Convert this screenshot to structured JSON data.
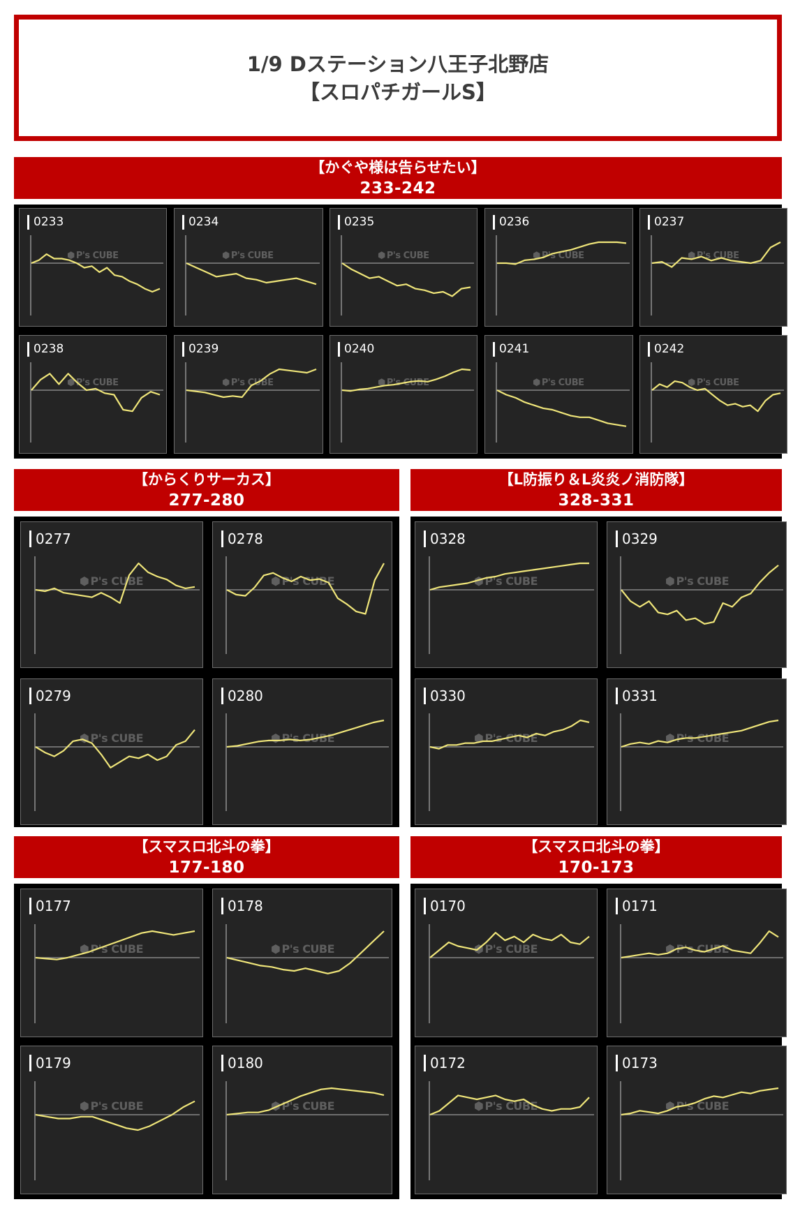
{
  "header": {
    "title_line1": "1/9 Dステーション八王子北野店",
    "title_line2": "【スロパチガールS】"
  },
  "watermark": {
    "text": "P's CUBE"
  },
  "colors": {
    "banner_red": "#c00000",
    "chart_bg": "#242424",
    "line_yellow": "#f0e67a",
    "axis_grey": "#9a9a9a"
  },
  "groups": [
    {
      "title": "【かぐや様は告らせたい】",
      "range": "233-242",
      "machines": [
        {
          "id": "0233",
          "values": [
            0,
            2,
            6,
            3,
            3,
            2,
            0,
            -3,
            -2,
            -6,
            -3,
            -8,
            -9,
            -12,
            -14,
            -17,
            -19,
            -17
          ]
        },
        {
          "id": "0234",
          "values": [
            0,
            -3,
            -6,
            -9,
            -8,
            -7,
            -10,
            -11,
            -13,
            -12,
            -11,
            -10,
            -12,
            -14
          ]
        },
        {
          "id": "0235",
          "values": [
            0,
            -4,
            -7,
            -10,
            -9,
            -12,
            -15,
            -14,
            -17,
            -18,
            -20,
            -19,
            -22,
            -17,
            -16
          ]
        },
        {
          "id": "0236",
          "values": [
            0,
            0,
            -1,
            3,
            4,
            6,
            10,
            12,
            14,
            17,
            20,
            22,
            22,
            22,
            21
          ]
        },
        {
          "id": "0237",
          "values": [
            0,
            1,
            -3,
            4,
            3,
            5,
            2,
            4,
            2,
            1,
            0,
            2,
            12,
            16
          ]
        },
        {
          "id": "0238",
          "values": [
            0,
            7,
            11,
            4,
            11,
            5,
            0,
            1,
            -2,
            -3,
            -13,
            -14,
            -5,
            -1,
            -3
          ]
        },
        {
          "id": "0239",
          "values": [
            0,
            -1,
            -2,
            -4,
            -6,
            -5,
            -6,
            4,
            8,
            14,
            18,
            17,
            16,
            15,
            18
          ]
        },
        {
          "id": "0240",
          "values": [
            0,
            -1,
            1,
            2,
            4,
            6,
            7,
            9,
            11,
            12,
            11,
            14,
            18,
            23,
            27,
            26
          ]
        },
        {
          "id": "0241",
          "values": [
            0,
            -3,
            -5,
            -8,
            -10,
            -12,
            -13,
            -15,
            -17,
            -18,
            -18,
            -20,
            -22,
            -23,
            -24
          ]
        },
        {
          "id": "0242",
          "values": [
            0,
            4,
            2,
            6,
            5,
            2,
            0,
            1,
            -3,
            -7,
            -10,
            -9,
            -11,
            -10,
            -14,
            -7,
            -3,
            -2
          ]
        }
      ]
    },
    {
      "title": "【からくりサーカス】",
      "range": "277-280",
      "machines": [
        {
          "id": "0277",
          "values": [
            0,
            -1,
            1,
            -2,
            -3,
            -4,
            -5,
            -2,
            -5,
            -9,
            10,
            18,
            12,
            9,
            7,
            3,
            1,
            2
          ]
        },
        {
          "id": "0278",
          "values": [
            0,
            -4,
            -5,
            2,
            12,
            14,
            10,
            7,
            11,
            8,
            9,
            6,
            -7,
            -12,
            -18,
            -20,
            8,
            22
          ]
        },
        {
          "id": "0279",
          "values": [
            0,
            -3,
            -5,
            -2,
            3,
            4,
            2,
            -4,
            -11,
            -8,
            -5,
            -6,
            -4,
            -7,
            -5,
            1,
            3,
            9
          ]
        },
        {
          "id": "0280",
          "values": [
            0,
            1,
            3,
            5,
            6,
            6,
            7,
            6,
            7,
            9,
            11,
            14,
            17,
            20,
            23,
            25
          ]
        }
      ]
    },
    {
      "title": "【L防振り＆L炎炎ノ消防隊】",
      "range": "328-331",
      "machines": [
        {
          "id": "0328",
          "values": [
            0,
            2,
            3,
            4,
            5,
            7,
            9,
            10,
            12,
            13,
            14,
            15,
            16,
            17,
            18,
            19,
            20,
            20
          ]
        },
        {
          "id": "0329",
          "values": [
            0,
            -6,
            -9,
            -6,
            -12,
            -13,
            -11,
            -16,
            -15,
            -18,
            -17,
            -7,
            -9,
            -4,
            -2,
            4,
            9,
            13
          ]
        },
        {
          "id": "0330",
          "values": [
            0,
            -1,
            1,
            1,
            2,
            2,
            3,
            3,
            4,
            5,
            6,
            5,
            7,
            6,
            8,
            9,
            11,
            14,
            13
          ]
        },
        {
          "id": "0331",
          "values": [
            0,
            2,
            3,
            2,
            4,
            3,
            5,
            6,
            6,
            7,
            8,
            9,
            10,
            11,
            13,
            15,
            17,
            18
          ]
        }
      ]
    },
    {
      "title": "【スマスロ北斗の拳】",
      "range": "177-180",
      "machines": [
        {
          "id": "0177",
          "values": [
            0,
            -1,
            -2,
            0,
            3,
            6,
            10,
            14,
            18,
            22,
            26,
            28,
            26,
            24,
            26,
            28
          ]
        },
        {
          "id": "0178",
          "values": [
            0,
            -2,
            -4,
            -6,
            -7,
            -9,
            -10,
            -8,
            -10,
            -12,
            -10,
            -4,
            4,
            12,
            20
          ]
        },
        {
          "id": "0179",
          "values": [
            0,
            -1,
            -2,
            -2,
            -1,
            -1,
            -3,
            -5,
            -7,
            -8,
            -6,
            -3,
            0,
            4,
            7
          ]
        },
        {
          "id": "0180",
          "values": [
            0,
            1,
            2,
            2,
            4,
            8,
            12,
            16,
            19,
            22,
            23,
            22,
            21,
            20,
            19,
            17
          ]
        }
      ]
    },
    {
      "title": "【スマスロ北斗の拳】",
      "range": "170-173",
      "machines": [
        {
          "id": "0170",
          "values": [
            0,
            4,
            8,
            6,
            5,
            4,
            8,
            13,
            9,
            11,
            8,
            12,
            10,
            9,
            12,
            8,
            7,
            11
          ]
        },
        {
          "id": "0171",
          "values": [
            0,
            1,
            2,
            3,
            2,
            3,
            6,
            7,
            5,
            4,
            6,
            8,
            5,
            4,
            3,
            10,
            18,
            14
          ]
        },
        {
          "id": "0172",
          "values": [
            0,
            2,
            6,
            10,
            9,
            8,
            9,
            10,
            8,
            7,
            8,
            5,
            3,
            2,
            3,
            3,
            4,
            9
          ]
        },
        {
          "id": "0173",
          "values": [
            0,
            1,
            3,
            2,
            1,
            3,
            6,
            7,
            9,
            12,
            14,
            13,
            15,
            17,
            16,
            18,
            19,
            20
          ]
        }
      ]
    }
  ]
}
